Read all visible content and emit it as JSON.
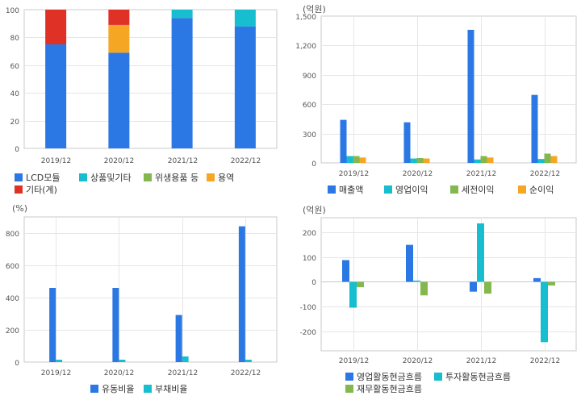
{
  "colors": {
    "blue": "#2b78e4",
    "cyan": "#17becf",
    "green": "#84b84f",
    "orange": "#f5a623",
    "red": "#e03127",
    "grid": "#e6e6e6",
    "frame": "#c8c8c8"
  },
  "chart_data": [
    {
      "id": "composition",
      "type": "bar",
      "stacked": true,
      "unit": "",
      "categories": [
        "2019/12",
        "2020/12",
        "2021/12",
        "2022/12"
      ],
      "ylim": [
        0,
        100
      ],
      "yticks": [
        0,
        20,
        40,
        60,
        80,
        100
      ],
      "series": [
        {
          "name": "LCD모듈",
          "color": "#2b78e4",
          "values": [
            75,
            69,
            94,
            88
          ]
        },
        {
          "name": "상품및기타",
          "color": "#17becf",
          "values": [
            0,
            0,
            6,
            12
          ]
        },
        {
          "name": "위생용품 등",
          "color": "#84b84f",
          "values": [
            0,
            0,
            0,
            0
          ]
        },
        {
          "name": "용역",
          "color": "#f5a623",
          "values": [
            0,
            20,
            0,
            0
          ]
        },
        {
          "name": "기타(계)",
          "color": "#e03127",
          "values": [
            25,
            11,
            0,
            0
          ]
        }
      ],
      "grid": true,
      "legend_position": "bottom"
    },
    {
      "id": "income",
      "type": "bar",
      "unit": "(억원)",
      "categories": [
        "2019/12",
        "2020/12",
        "2021/12",
        "2022/12"
      ],
      "ylim": [
        0,
        1500
      ],
      "yticks": [
        0,
        300,
        600,
        900,
        1200,
        1500
      ],
      "ytick_labels": [
        "0",
        "300",
        "600",
        "900",
        "1,200",
        "1,500"
      ],
      "series": [
        {
          "name": "매출액",
          "color": "#2b78e4",
          "values": [
            440,
            415,
            1360,
            695
          ]
        },
        {
          "name": "영업이익",
          "color": "#17becf",
          "values": [
            70,
            45,
            35,
            40
          ]
        },
        {
          "name": "세전이익",
          "color": "#84b84f",
          "values": [
            70,
            50,
            70,
            95
          ]
        },
        {
          "name": "순이익",
          "color": "#f5a623",
          "values": [
            55,
            45,
            55,
            70
          ]
        }
      ],
      "grid": true,
      "legend_position": "bottom"
    },
    {
      "id": "ratios",
      "type": "bar",
      "unit": "(%)",
      "categories": [
        "2019/12",
        "2020/12",
        "2021/12",
        "2022/12"
      ],
      "ylim": [
        0,
        900
      ],
      "yticks": [
        0,
        200,
        400,
        600,
        800
      ],
      "series": [
        {
          "name": "유동비율",
          "color": "#2b78e4",
          "values": [
            460,
            460,
            292,
            842
          ]
        },
        {
          "name": "부채비율",
          "color": "#17becf",
          "values": [
            15,
            15,
            35,
            15
          ]
        }
      ],
      "grid": true,
      "legend_position": "bottom"
    },
    {
      "id": "cashflow",
      "type": "bar",
      "unit": "(억원)",
      "categories": [
        "2019/12",
        "2020/12",
        "2021/12",
        "2022/12"
      ],
      "ylim": [
        -280,
        260
      ],
      "yticks": [
        -200,
        -100,
        0,
        100,
        200
      ],
      "series": [
        {
          "name": "영업활동현금흐름",
          "color": "#2b78e4",
          "values": [
            88,
            150,
            -40,
            15
          ]
        },
        {
          "name": "투자활동현금흐름",
          "color": "#17becf",
          "values": [
            -105,
            5,
            237,
            -245
          ]
        },
        {
          "name": "재무활동현금흐름",
          "color": "#84b84f",
          "values": [
            -22,
            -55,
            -48,
            -15
          ]
        }
      ],
      "grid": true,
      "legend_position": "bottom"
    }
  ]
}
